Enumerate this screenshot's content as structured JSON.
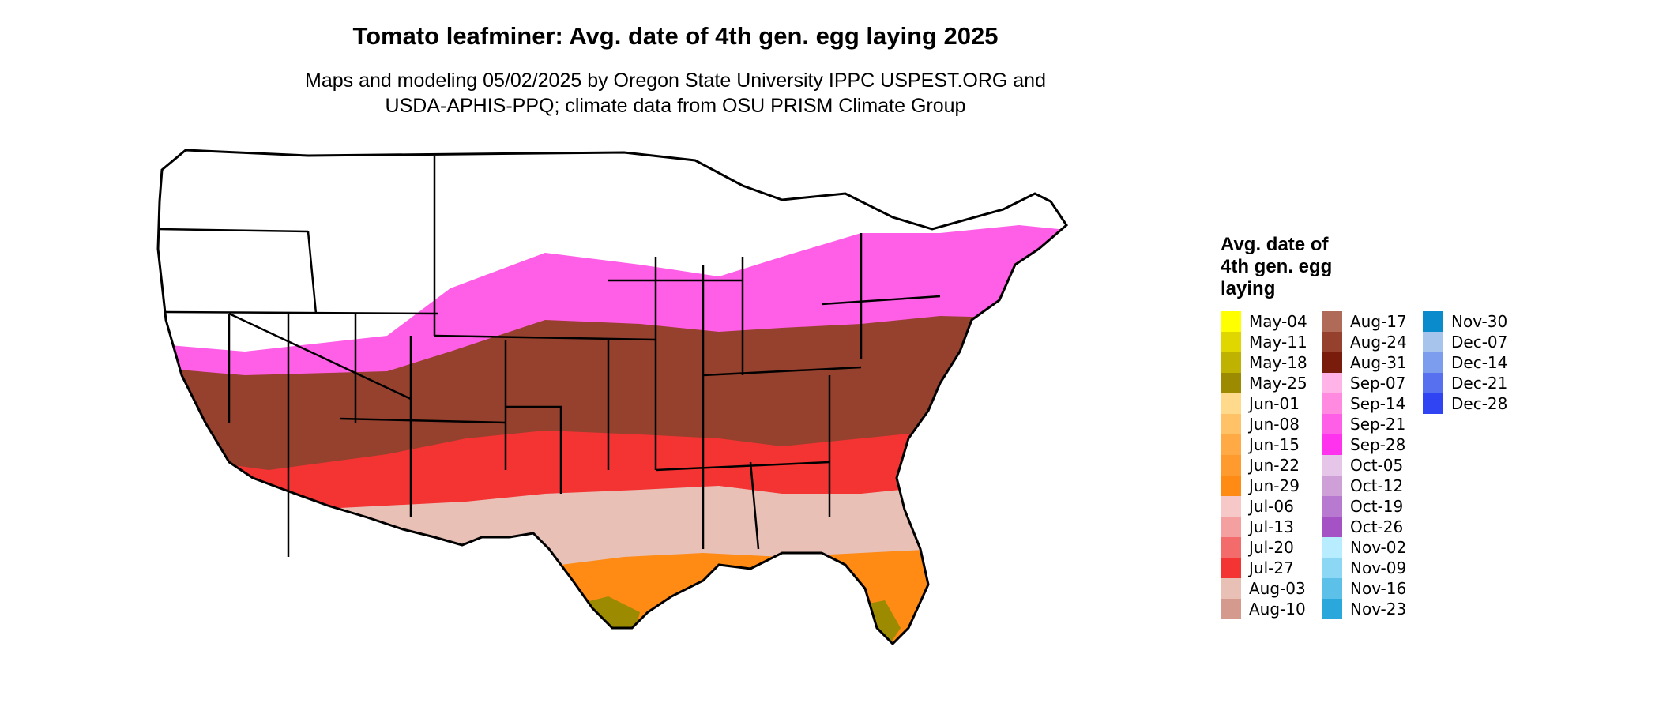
{
  "title": "Tomato leafminer: Avg. date of 4th gen. egg laying 2025",
  "subtitle_lines": [
    "Maps and modeling 05/02/2025 by Oregon State University IPPC USPEST.ORG and",
    "USDA-APHIS-PPQ; climate data from OSU PRISM Climate Group"
  ],
  "legend": {
    "title_lines": [
      "Avg. date of",
      "4th gen. egg",
      "laying"
    ],
    "items": [
      {
        "label": "May-04",
        "color": "#ffff00"
      },
      {
        "label": "May-11",
        "color": "#e0d600"
      },
      {
        "label": "May-18",
        "color": "#bfb200"
      },
      {
        "label": "May-25",
        "color": "#9c8a00"
      },
      {
        "label": "Jun-01",
        "color": "#ffd98c"
      },
      {
        "label": "Jun-08",
        "color": "#ffc266"
      },
      {
        "label": "Jun-15",
        "color": "#ffaa44"
      },
      {
        "label": "Jun-22",
        "color": "#ff9a2e"
      },
      {
        "label": "Jun-29",
        "color": "#ff8a14"
      },
      {
        "label": "Jul-06",
        "color": "#f6c8c8"
      },
      {
        "label": "Jul-13",
        "color": "#f4a0a0"
      },
      {
        "label": "Jul-20",
        "color": "#f46b6b"
      },
      {
        "label": "Jul-27",
        "color": "#f43333"
      },
      {
        "label": "Aug-03",
        "color": "#e8c0b6"
      },
      {
        "label": "Aug-10",
        "color": "#d49a8e"
      },
      {
        "label": "Aug-17",
        "color": "#b06a58"
      },
      {
        "label": "Aug-24",
        "color": "#96402e"
      },
      {
        "label": "Aug-31",
        "color": "#7a1c0c"
      },
      {
        "label": "Sep-07",
        "color": "#ffb3e6"
      },
      {
        "label": "Sep-14",
        "color": "#ff8ae0"
      },
      {
        "label": "Sep-21",
        "color": "#ff5ee6"
      },
      {
        "label": "Sep-28",
        "color": "#ff33ee"
      },
      {
        "label": "Oct-05",
        "color": "#e6c6e8"
      },
      {
        "label": "Oct-12",
        "color": "#cfa0d8"
      },
      {
        "label": "Oct-19",
        "color": "#b87ad0"
      },
      {
        "label": "Oct-26",
        "color": "#a552c4"
      },
      {
        "label": "Nov-02",
        "color": "#b8ecff"
      },
      {
        "label": "Nov-09",
        "color": "#8cd8f4"
      },
      {
        "label": "Nov-16",
        "color": "#5cc0e8"
      },
      {
        "label": "Nov-23",
        "color": "#2aa8dc"
      },
      {
        "label": "Nov-30",
        "color": "#0a8ccc"
      },
      {
        "label": "Dec-07",
        "color": "#a6c4ec"
      },
      {
        "label": "Dec-14",
        "color": "#7c9cee"
      },
      {
        "label": "Dec-21",
        "color": "#5670f0"
      },
      {
        "label": "Dec-28",
        "color": "#3044f4"
      }
    ]
  },
  "regions": [
    {
      "name": "northern-plains-rockies",
      "legend_label": "none"
    },
    {
      "name": "upper-midwest-northeast",
      "legend_label": "Sep-21"
    },
    {
      "name": "central-band",
      "legend_label": "Aug-24"
    },
    {
      "name": "mid-south",
      "legend_label": "Jul-27"
    },
    {
      "name": "deep-south",
      "legend_label": "Aug-03"
    },
    {
      "name": "gulf-coast",
      "legend_label": "Jun-22"
    },
    {
      "name": "south-texas-florida-tip",
      "legend_label": "May-25"
    }
  ]
}
